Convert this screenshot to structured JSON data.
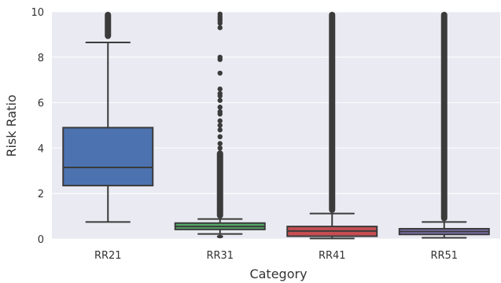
{
  "chart_data": {
    "type": "box",
    "xlabel": "Category",
    "ylabel": "Risk Ratio",
    "ylim": [
      0,
      10
    ],
    "yticks": [
      0,
      2,
      4,
      6,
      8,
      10
    ],
    "grid": true,
    "background": "#eaeaf2",
    "categories": [
      "RR21",
      "RR31",
      "RR41",
      "RR51"
    ],
    "boxes": [
      {
        "category": "RR21",
        "color": "#4c72b0",
        "whisker_low": 0.75,
        "q1": 2.35,
        "median": 3.15,
        "q3": 4.9,
        "whisker_high": 8.65,
        "outliers_dense": [
          [
            8.8,
            10
          ]
        ],
        "outliers": []
      },
      {
        "category": "RR31",
        "color": "#55a868",
        "whisker_low": 0.22,
        "q1": 0.42,
        "median": 0.55,
        "q3": 0.7,
        "whisker_high": 0.88,
        "outliers_dense": [
          [
            0.9,
            3.9
          ],
          [
            0.03,
            0.18
          ]
        ],
        "outliers": [
          9.3,
          9.5,
          9.6,
          9.7,
          9.8,
          9.9,
          7.3,
          7.9,
          8.0,
          6.6,
          6.4,
          6.3,
          6.1,
          5.8,
          5.6,
          5.5,
          5.2,
          5.0,
          4.8,
          4.5,
          4.2,
          4.0
        ]
      },
      {
        "category": "RR41",
        "color": "#c44e52",
        "whisker_low": 0.02,
        "q1": 0.12,
        "median": 0.35,
        "q3": 0.55,
        "whisker_high": 1.12,
        "outliers_dense": [
          [
            1.15,
            10
          ]
        ],
        "outliers": []
      },
      {
        "category": "RR51",
        "color": "#8172b2",
        "whisker_low": 0.05,
        "q1": 0.2,
        "median": 0.33,
        "q3": 0.45,
        "whisker_high": 0.75,
        "outliers_dense": [
          [
            0.78,
            10
          ]
        ],
        "outliers": []
      }
    ]
  }
}
